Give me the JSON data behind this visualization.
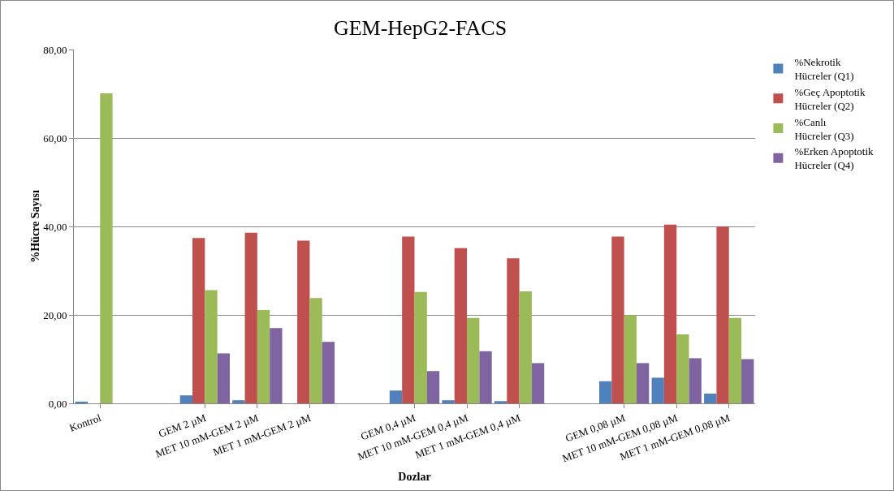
{
  "chart_data": {
    "type": "bar",
    "title": "GEM-HepG2-FACS",
    "xlabel": "Dozlar",
    "ylabel": "%Hücre Sayısı",
    "categories": [
      "Kontrol",
      null,
      "GEM 2 µM",
      "MET 10 mM-GEM 2 µM",
      "MET 1 mM-GEM 2 µM",
      null,
      "GEM 0,4 µM",
      "MET 10 mM-GEM 0,4 µM",
      "MET 1 mM-GEM 0,4 µM",
      null,
      "GEM 0,08 µM",
      "MET 10 mM-GEM 0,08 µM",
      "MET 1 mM-GEM 0,08 µM"
    ],
    "series": [
      {
        "name": "%Nekrotik Hücreler (Q1)",
        "color": "#4f81bd",
        "values": [
          0.4,
          null,
          1.8,
          0.7,
          null,
          null,
          2.9,
          0.7,
          0.5,
          null,
          5.0,
          5.8,
          2.2
        ]
      },
      {
        "name": "%Geç Apoptotik Hücreler (Q2)",
        "color": "#c0504d",
        "values": [
          0,
          null,
          37.4,
          38.6,
          36.8,
          null,
          37.7,
          35.1,
          32.8,
          null,
          37.7,
          40.4,
          40.0
        ]
      },
      {
        "name": "%Canlı Hücreler (Q3)",
        "color": "#9bbb59",
        "values": [
          70.1,
          null,
          25.6,
          21.1,
          23.8,
          null,
          25.2,
          19.3,
          25.3,
          null,
          19.9,
          15.6,
          19.3
        ]
      },
      {
        "name": "%Erken Apoptotik Hücreler (Q4)",
        "color": "#8064a2",
        "values": [
          0,
          null,
          11.3,
          17.0,
          13.9,
          null,
          7.3,
          11.8,
          9.1,
          null,
          9.1,
          10.2,
          10.0
        ]
      }
    ],
    "ylim": [
      0,
      80
    ],
    "yticks": [
      {
        "value": 0,
        "label": "0,00"
      },
      {
        "value": 20,
        "label": "20,00"
      },
      {
        "value": 40,
        "label": "40,00"
      },
      {
        "value": 60,
        "label": "60,00"
      },
      {
        "value": 80,
        "label": "80,00"
      }
    ],
    "grid": "y",
    "legend": "right"
  }
}
